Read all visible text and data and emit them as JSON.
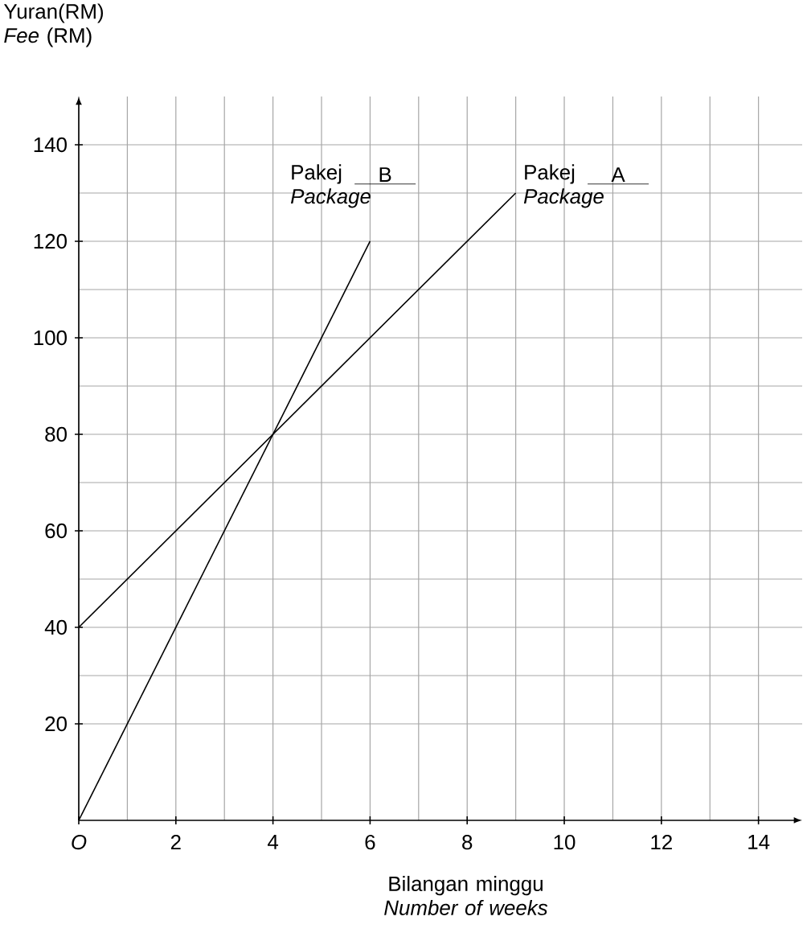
{
  "chart_data": {
    "type": "line",
    "xlabel": "Bilangan minggu *Number of weeks*",
    "ylabel": "Yuran(RM) *Fee* (RM)",
    "series": [
      {
        "name": "A",
        "x": [
          0,
          9
        ],
        "values": [
          40,
          130
        ],
        "color": "#000000"
      },
      {
        "name": "B",
        "x": [
          0,
          6
        ],
        "values": [
          0,
          120
        ],
        "color": "#000000"
      }
    ],
    "annotations": [
      {
        "text": "Pakej *Package*",
        "x": 9,
        "y": 130
      },
      {
        "text": "Pakej *Package*",
        "x": 6,
        "y": 120
      }
    ],
    "xlim": [
      0,
      14.9
    ],
    "ylim": [
      0,
      150
    ],
    "xticks": [
      {
        "value": 0,
        "label": "*O*"
      },
      2,
      4,
      6,
      8,
      10,
      12,
      14
    ],
    "yticks": [
      20,
      40,
      60,
      80,
      100,
      120,
      140
    ],
    "grid": true,
    "marker": "none",
    "line_style": "solid"
  }
}
